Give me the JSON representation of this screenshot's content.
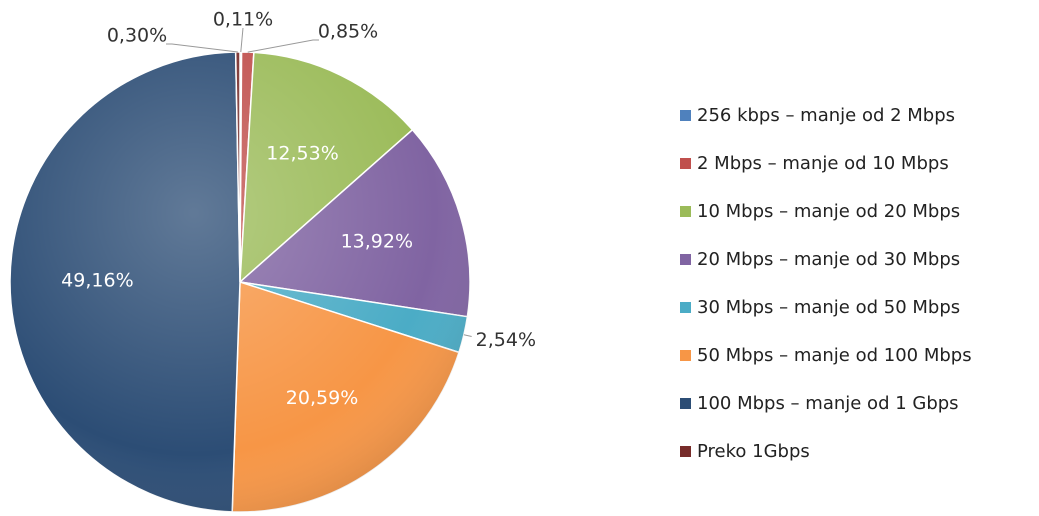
{
  "chart_data": {
    "type": "pie",
    "categories": [
      "256 kbps – manje od 2 Mbps",
      "2 Mbps – manje od 10 Mbps",
      "10 Mbps – manje od 20 Mbps",
      "20 Mbps – manje od 30 Mbps",
      "30 Mbps – manje od 50 Mbps",
      "50 Mbps – manje od 100 Mbps",
      "100 Mbps – manje od 1 Gbps",
      "Preko 1Gbps"
    ],
    "values": [
      0.11,
      0.85,
      12.53,
      13.92,
      2.54,
      20.59,
      49.16,
      0.3
    ],
    "value_labels": [
      "0,11%",
      "0,85%",
      "12,53%",
      "13,92%",
      "2,54%",
      "20,59%",
      "49,16%",
      "0,30%"
    ],
    "colors": [
      "#4f81bd",
      "#c0504d",
      "#9bbb59",
      "#8064a2",
      "#4bacc6",
      "#f79646",
      "#2c4d75",
      "#772c2a"
    ],
    "legend": "right"
  }
}
